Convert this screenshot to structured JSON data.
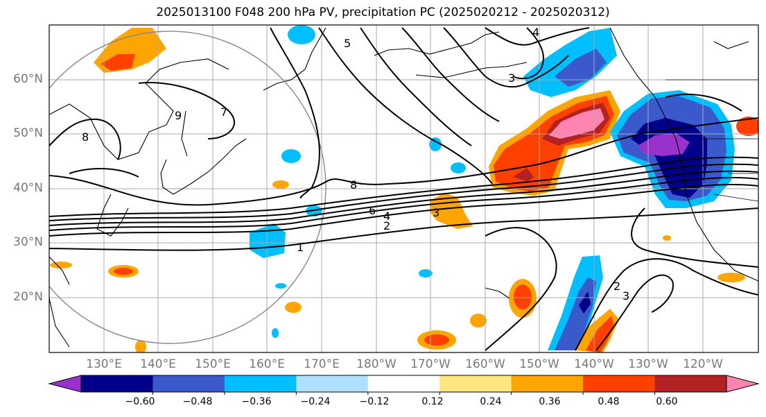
{
  "title": "2025013100 F048 200 hPa PV, precipitation PC (2025020212 - 2025020312)",
  "lat_labels": [
    "60°N",
    "50°N",
    "40°N",
    "30°N",
    "20°N"
  ],
  "lon_labels": [
    "130°E",
    "140°E",
    "150°E",
    "160°E",
    "170°E",
    "180°W",
    "170°W",
    "160°W",
    "150°W",
    "140°W",
    "130°W",
    "120°W"
  ],
  "colorbar": {
    "tick_labels": [
      "−0.60",
      "−0.48",
      "−0.36",
      "−0.24",
      "−0.12",
      "0.12",
      "0.24",
      "0.36",
      "0.48",
      "0.60"
    ],
    "colors": [
      "#9932cc",
      "#00008b",
      "#3a5acc",
      "#00bfff",
      "#b0e0ff",
      "#ffffff",
      "#ffe680",
      "#ffa500",
      "#ff4000",
      "#b22222",
      "#ff85b0"
    ]
  },
  "pv_contour_labels": [
    "1",
    "2",
    "3",
    "4",
    "6",
    "7",
    "8",
    "5",
    "9",
    "3",
    "2",
    "3",
    "4",
    "8"
  ]
}
